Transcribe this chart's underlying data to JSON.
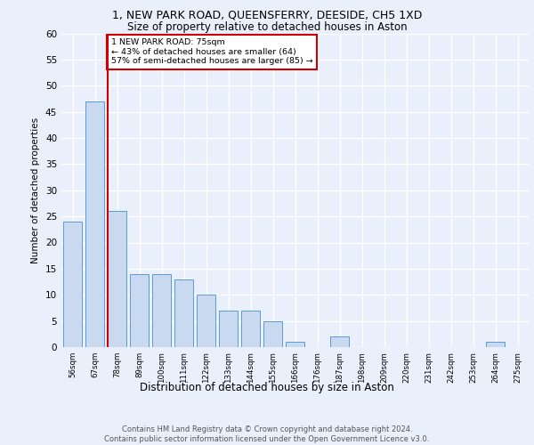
{
  "title1": "1, NEW PARK ROAD, QUEENSFERRY, DEESIDE, CH5 1XD",
  "title2": "Size of property relative to detached houses in Aston",
  "xlabel": "Distribution of detached houses by size in Aston",
  "ylabel": "Number of detached properties",
  "categories": [
    "56sqm",
    "67sqm",
    "78sqm",
    "89sqm",
    "100sqm",
    "111sqm",
    "122sqm",
    "133sqm",
    "144sqm",
    "155sqm",
    "166sqm",
    "176sqm",
    "187sqm",
    "198sqm",
    "209sqm",
    "220sqm",
    "231sqm",
    "242sqm",
    "253sqm",
    "264sqm",
    "275sqm"
  ],
  "values": [
    24,
    47,
    26,
    14,
    14,
    13,
    10,
    7,
    7,
    5,
    1,
    0,
    2,
    0,
    0,
    0,
    0,
    0,
    0,
    1,
    0
  ],
  "bar_color": "#c8d9f0",
  "bar_edge_color": "#5b9bd5",
  "red_line_index": 2,
  "annotation_text": "1 NEW PARK ROAD: 75sqm\n← 43% of detached houses are smaller (64)\n57% of semi-detached houses are larger (85) →",
  "annotation_box_color": "#ffffff",
  "annotation_box_edge": "#cc0000",
  "footer": "Contains HM Land Registry data © Crown copyright and database right 2024.\nContains public sector information licensed under the Open Government Licence v3.0.",
  "ylim": [
    0,
    60
  ],
  "yticks": [
    0,
    5,
    10,
    15,
    20,
    25,
    30,
    35,
    40,
    45,
    50,
    55,
    60
  ],
  "bg_color": "#eaf0fb",
  "plot_bg_color": "#eaf0fb",
  "grid_color": "#ffffff"
}
